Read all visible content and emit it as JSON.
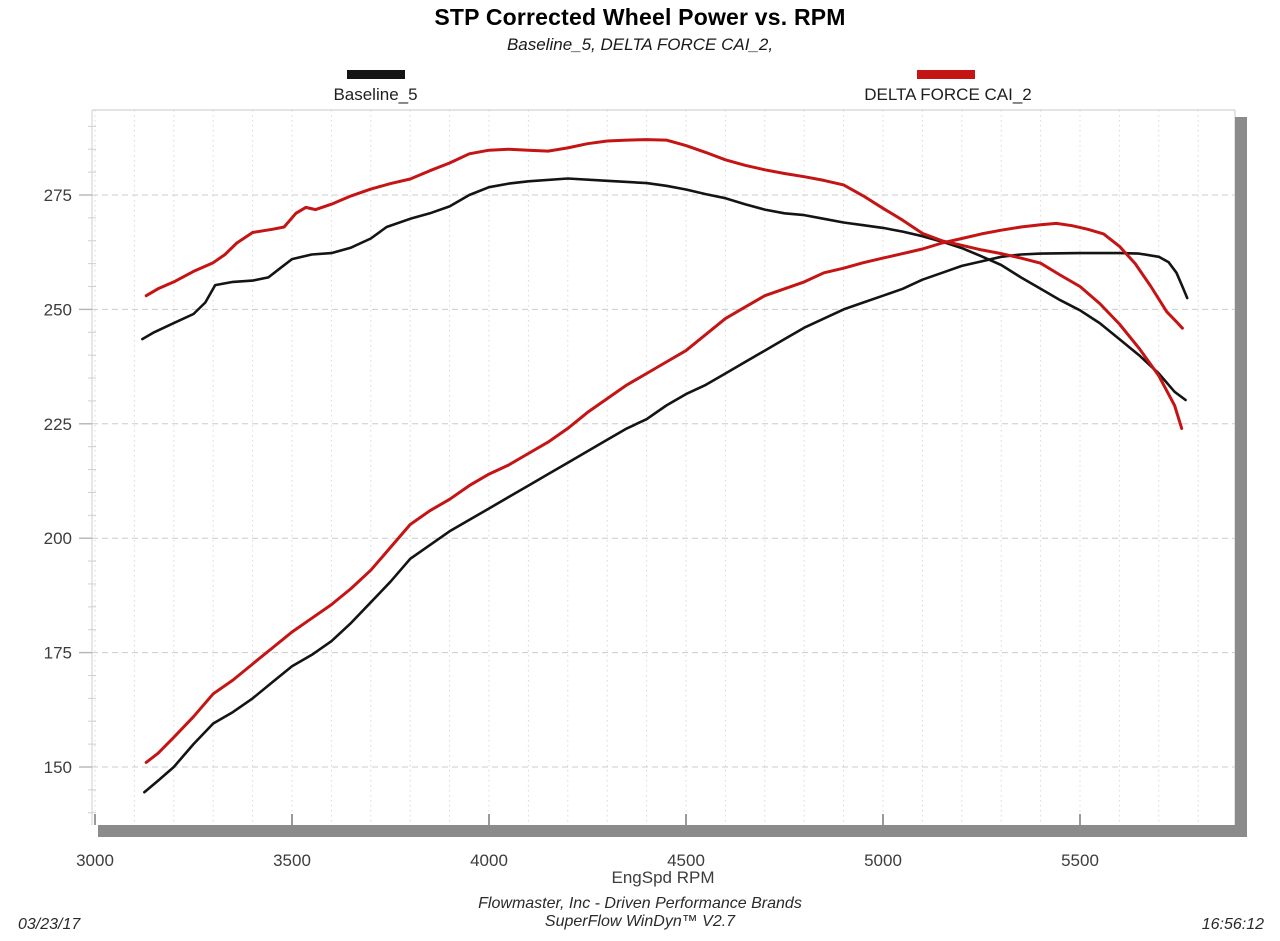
{
  "header": {
    "title": "STP Corrected Wheel Power vs. RPM",
    "subtitle": "Baseline_5, DELTA FORCE CAI_2,"
  },
  "legend": {
    "position": "top",
    "entries": [
      {
        "label": "Baseline_5",
        "color": "#141414"
      },
      {
        "label": "DELTA FORCE CAI_2",
        "color": "#c41414"
      }
    ]
  },
  "axes": {
    "x_label": "EngSpd RPM",
    "x_ticks": [
      3000,
      3500,
      4000,
      4500,
      5000,
      5500
    ],
    "y_ticks": [
      150,
      175,
      200,
      225,
      250,
      275
    ]
  },
  "footer": {
    "company": "Flowmaster, Inc - Driven Performance Brands",
    "software": "SuperFlow WinDyn™ V2.7",
    "date": "03/23/17",
    "time": "16:56:12"
  },
  "chart_data": {
    "type": "line",
    "title": "STP Corrected Wheel Power vs. RPM",
    "subtitle": "Baseline_5, DELTA FORCE CAI_2,",
    "xlabel": "EngSpd RPM",
    "ylabel": "",
    "xlim": [
      2992,
      5895
    ],
    "ylim": [
      137,
      294
    ],
    "x_tick_step": 500,
    "y_tick_step": 25,
    "x_minor_step": 100,
    "y_minor_step": 5,
    "grid": "on",
    "legend_position": "top",
    "series": [
      {
        "name": "Baseline_5 (power, rising curve)",
        "color": "#141414",
        "points": [
          [
            3125,
            144.5
          ],
          [
            3160,
            147
          ],
          [
            3200,
            150
          ],
          [
            3250,
            155
          ],
          [
            3300,
            159.5
          ],
          [
            3350,
            162
          ],
          [
            3400,
            165
          ],
          [
            3450,
            168.5
          ],
          [
            3500,
            172
          ],
          [
            3550,
            174.5
          ],
          [
            3600,
            177.5
          ],
          [
            3650,
            181.5
          ],
          [
            3700,
            186
          ],
          [
            3750,
            190.5
          ],
          [
            3800,
            195.5
          ],
          [
            3850,
            198.5
          ],
          [
            3900,
            201.5
          ],
          [
            3950,
            204
          ],
          [
            4000,
            206.5
          ],
          [
            4050,
            209
          ],
          [
            4100,
            211.5
          ],
          [
            4150,
            214
          ],
          [
            4200,
            216.5
          ],
          [
            4250,
            219
          ],
          [
            4300,
            221.5
          ],
          [
            4350,
            224
          ],
          [
            4400,
            226
          ],
          [
            4450,
            229
          ],
          [
            4500,
            231.5
          ],
          [
            4550,
            233.5
          ],
          [
            4600,
            236
          ],
          [
            4650,
            238.5
          ],
          [
            4700,
            241
          ],
          [
            4750,
            243.5
          ],
          [
            4800,
            246
          ],
          [
            4850,
            248
          ],
          [
            4900,
            250
          ],
          [
            4950,
            251.5
          ],
          [
            5000,
            253
          ],
          [
            5050,
            254.5
          ],
          [
            5100,
            256.5
          ],
          [
            5150,
            258
          ],
          [
            5200,
            259.5
          ],
          [
            5250,
            260.5
          ],
          [
            5300,
            261.5
          ],
          [
            5350,
            262
          ],
          [
            5400,
            262.2
          ],
          [
            5500,
            262.3
          ],
          [
            5600,
            262.3
          ],
          [
            5650,
            262.2
          ],
          [
            5700,
            261.5
          ],
          [
            5725,
            260.3
          ],
          [
            5745,
            258
          ],
          [
            5760,
            255
          ],
          [
            5772,
            252.5
          ]
        ]
      },
      {
        "name": "Baseline_5 (torque-shaped, peaking curve)",
        "color": "#141414",
        "points": [
          [
            3120,
            243.5
          ],
          [
            3150,
            245
          ],
          [
            3200,
            247
          ],
          [
            3250,
            249
          ],
          [
            3280,
            251.5
          ],
          [
            3305,
            255.3
          ],
          [
            3350,
            256
          ],
          [
            3400,
            256.3
          ],
          [
            3440,
            257
          ],
          [
            3470,
            259
          ],
          [
            3500,
            261
          ],
          [
            3550,
            262
          ],
          [
            3600,
            262.3
          ],
          [
            3650,
            263.5
          ],
          [
            3700,
            265.5
          ],
          [
            3740,
            268
          ],
          [
            3800,
            269.8
          ],
          [
            3850,
            271
          ],
          [
            3900,
            272.5
          ],
          [
            3950,
            275
          ],
          [
            4000,
            276.7
          ],
          [
            4050,
            277.5
          ],
          [
            4100,
            278
          ],
          [
            4200,
            278.6
          ],
          [
            4300,
            278.1
          ],
          [
            4400,
            277.6
          ],
          [
            4450,
            277
          ],
          [
            4500,
            276.2
          ],
          [
            4550,
            275.2
          ],
          [
            4600,
            274.3
          ],
          [
            4650,
            273
          ],
          [
            4700,
            271.8
          ],
          [
            4750,
            271
          ],
          [
            4800,
            270.6
          ],
          [
            4850,
            269.8
          ],
          [
            4900,
            269
          ],
          [
            4950,
            268.4
          ],
          [
            5000,
            267.8
          ],
          [
            5050,
            267
          ],
          [
            5100,
            266
          ],
          [
            5150,
            264.8
          ],
          [
            5200,
            263.4
          ],
          [
            5250,
            261.6
          ],
          [
            5300,
            259.7
          ],
          [
            5350,
            257
          ],
          [
            5400,
            254.5
          ],
          [
            5450,
            252
          ],
          [
            5500,
            249.8
          ],
          [
            5550,
            247
          ],
          [
            5600,
            243.5
          ],
          [
            5650,
            240
          ],
          [
            5700,
            236
          ],
          [
            5740,
            232
          ],
          [
            5768,
            230.2
          ]
        ]
      },
      {
        "name": "DELTA FORCE CAI_2 (power, rising curve)",
        "color": "#c41414",
        "points": [
          [
            3130,
            151
          ],
          [
            3160,
            153
          ],
          [
            3200,
            156.5
          ],
          [
            3250,
            161
          ],
          [
            3300,
            166
          ],
          [
            3350,
            169
          ],
          [
            3400,
            172.5
          ],
          [
            3450,
            176
          ],
          [
            3500,
            179.5
          ],
          [
            3550,
            182.5
          ],
          [
            3600,
            185.5
          ],
          [
            3650,
            189
          ],
          [
            3700,
            193
          ],
          [
            3750,
            198
          ],
          [
            3800,
            203
          ],
          [
            3850,
            206
          ],
          [
            3900,
            208.5
          ],
          [
            3950,
            211.5
          ],
          [
            4000,
            214
          ],
          [
            4050,
            216
          ],
          [
            4100,
            218.5
          ],
          [
            4150,
            221
          ],
          [
            4200,
            224
          ],
          [
            4250,
            227.5
          ],
          [
            4300,
            230.5
          ],
          [
            4350,
            233.5
          ],
          [
            4400,
            236
          ],
          [
            4450,
            238.5
          ],
          [
            4500,
            241
          ],
          [
            4550,
            244.5
          ],
          [
            4600,
            248
          ],
          [
            4650,
            250.5
          ],
          [
            4700,
            253
          ],
          [
            4750,
            254.5
          ],
          [
            4800,
            256
          ],
          [
            4850,
            258
          ],
          [
            4900,
            259
          ],
          [
            4950,
            260.2
          ],
          [
            5000,
            261.2
          ],
          [
            5050,
            262.2
          ],
          [
            5100,
            263.2
          ],
          [
            5150,
            264.5
          ],
          [
            5200,
            265.5
          ],
          [
            5250,
            266.5
          ],
          [
            5300,
            267.3
          ],
          [
            5350,
            268
          ],
          [
            5400,
            268.5
          ],
          [
            5440,
            268.8
          ],
          [
            5480,
            268.3
          ],
          [
            5520,
            267.5
          ],
          [
            5560,
            266.5
          ],
          [
            5600,
            263.8
          ],
          [
            5640,
            260
          ],
          [
            5680,
            255
          ],
          [
            5720,
            249.5
          ],
          [
            5748,
            247
          ],
          [
            5760,
            245.9
          ]
        ]
      },
      {
        "name": "DELTA FORCE CAI_2 (torque-shaped, peaking curve)",
        "color": "#c41414",
        "points": [
          [
            3130,
            253
          ],
          [
            3160,
            254.5
          ],
          [
            3200,
            256
          ],
          [
            3250,
            258.3
          ],
          [
            3300,
            260.2
          ],
          [
            3330,
            262
          ],
          [
            3360,
            264.5
          ],
          [
            3400,
            266.8
          ],
          [
            3450,
            267.5
          ],
          [
            3480,
            268
          ],
          [
            3510,
            271
          ],
          [
            3535,
            272.3
          ],
          [
            3560,
            271.8
          ],
          [
            3600,
            273
          ],
          [
            3650,
            274.8
          ],
          [
            3700,
            276.3
          ],
          [
            3750,
            277.5
          ],
          [
            3800,
            278.5
          ],
          [
            3850,
            280.3
          ],
          [
            3900,
            282
          ],
          [
            3950,
            284
          ],
          [
            4000,
            284.8
          ],
          [
            4050,
            285
          ],
          [
            4100,
            284.8
          ],
          [
            4150,
            284.6
          ],
          [
            4200,
            285.3
          ],
          [
            4250,
            286.2
          ],
          [
            4300,
            286.8
          ],
          [
            4350,
            287
          ],
          [
            4400,
            287.1
          ],
          [
            4450,
            287
          ],
          [
            4500,
            285.8
          ],
          [
            4550,
            284.3
          ],
          [
            4600,
            282.7
          ],
          [
            4650,
            281.5
          ],
          [
            4700,
            280.5
          ],
          [
            4750,
            279.7
          ],
          [
            4800,
            279
          ],
          [
            4850,
            278.2
          ],
          [
            4900,
            277.2
          ],
          [
            4950,
            274.8
          ],
          [
            5000,
            272.1
          ],
          [
            5050,
            269.5
          ],
          [
            5100,
            266.6
          ],
          [
            5150,
            265
          ],
          [
            5200,
            264
          ],
          [
            5250,
            263
          ],
          [
            5300,
            262.2
          ],
          [
            5350,
            261.2
          ],
          [
            5400,
            260.1
          ],
          [
            5450,
            257.5
          ],
          [
            5500,
            255
          ],
          [
            5550,
            251.3
          ],
          [
            5600,
            246.8
          ],
          [
            5650,
            241.5
          ],
          [
            5700,
            235.5
          ],
          [
            5740,
            229
          ],
          [
            5758,
            224
          ]
        ]
      }
    ]
  }
}
